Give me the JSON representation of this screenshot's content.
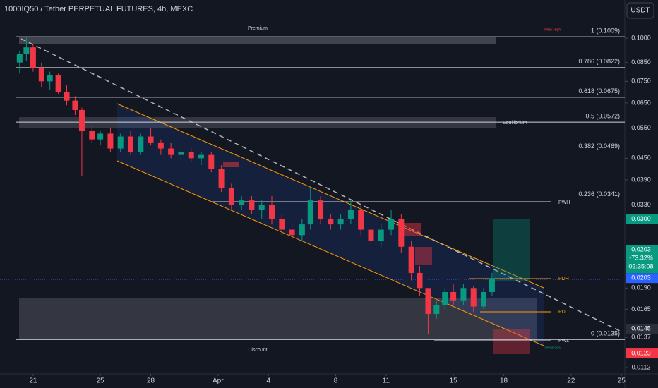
{
  "chart_data": {
    "type": "candlestick",
    "title": "1000IQ50 / Tether PERPETUAL FUTURES, 4h, MEXC",
    "currency_button": "USDT",
    "log_scale": true,
    "colors": {
      "up": "#089981",
      "down": "#f23645"
    },
    "x": [
      20.2,
      20.6,
      21.0,
      21.5,
      22.0,
      22.5,
      23.0,
      23.5,
      23.9,
      24.5,
      25.0,
      25.6,
      26.2,
      26.8,
      27.4,
      28.0,
      28.6,
      29.2,
      29.8,
      30.4,
      31.0,
      31.6,
      32.2,
      32.8,
      33.4,
      34.0,
      34.6,
      35.2,
      35.8,
      36.4,
      37.0,
      37.5,
      38.1,
      38.7,
      39.3,
      39.9,
      40.5,
      41.1,
      41.7,
      42.3,
      42.9,
      43.5,
      44.0,
      44.5,
      45.0,
      45.5,
      46.0,
      46.6,
      47.2,
      47.8,
      48.3
    ],
    "open": [
      0.085,
      0.09,
      0.094,
      0.082,
      0.075,
      0.078,
      0.07,
      0.066,
      0.062,
      0.054,
      0.051,
      0.053,
      0.048,
      0.052,
      0.047,
      0.052,
      0.05,
      0.048,
      0.046,
      0.047,
      0.045,
      0.046,
      0.042,
      0.037,
      0.033,
      0.034,
      0.032,
      0.033,
      0.03,
      0.028,
      0.027,
      0.029,
      0.034,
      0.03,
      0.029,
      0.03,
      0.032,
      0.028,
      0.026,
      0.028,
      0.03,
      0.025,
      0.021,
      0.019,
      0.016,
      0.017,
      0.0185,
      0.0175,
      0.019,
      0.0168,
      0.0185
    ],
    "high": [
      0.092,
      0.101,
      0.096,
      0.085,
      0.08,
      0.079,
      0.073,
      0.068,
      0.063,
      0.056,
      0.054,
      0.055,
      0.053,
      0.054,
      0.053,
      0.055,
      0.051,
      0.05,
      0.048,
      0.048,
      0.047,
      0.047,
      0.043,
      0.038,
      0.035,
      0.035,
      0.034,
      0.035,
      0.031,
      0.029,
      0.03,
      0.037,
      0.035,
      0.031,
      0.031,
      0.034,
      0.033,
      0.029,
      0.029,
      0.032,
      0.031,
      0.026,
      0.022,
      0.019,
      0.0175,
      0.019,
      0.0195,
      0.0195,
      0.0192,
      0.019,
      0.021
    ],
    "low": [
      0.079,
      0.086,
      0.08,
      0.072,
      0.071,
      0.069,
      0.064,
      0.06,
      0.04,
      0.05,
      0.049,
      0.047,
      0.047,
      0.046,
      0.046,
      0.049,
      0.046,
      0.045,
      0.044,
      0.044,
      0.043,
      0.041,
      0.036,
      0.032,
      0.032,
      0.031,
      0.03,
      0.029,
      0.027,
      0.026,
      0.026,
      0.028,
      0.029,
      0.028,
      0.028,
      0.029,
      0.027,
      0.025,
      0.025,
      0.027,
      0.024,
      0.02,
      0.018,
      0.014,
      0.0155,
      0.0165,
      0.017,
      0.017,
      0.0162,
      0.0165,
      0.018
    ],
    "close": [
      0.09,
      0.094,
      0.082,
      0.075,
      0.078,
      0.07,
      0.066,
      0.062,
      0.054,
      0.051,
      0.053,
      0.048,
      0.052,
      0.047,
      0.052,
      0.05,
      0.048,
      0.046,
      0.047,
      0.045,
      0.046,
      0.042,
      0.037,
      0.033,
      0.034,
      0.032,
      0.033,
      0.03,
      0.028,
      0.027,
      0.029,
      0.034,
      0.03,
      0.029,
      0.03,
      0.032,
      0.028,
      0.026,
      0.028,
      0.03,
      0.025,
      0.021,
      0.019,
      0.016,
      0.017,
      0.0185,
      0.0175,
      0.019,
      0.0168,
      0.0185,
      0.0203
    ],
    "xlim": [
      19.03,
      56.2
    ],
    "xticks": [
      21,
      25,
      28,
      {
        "value": 32,
        "label": "Apr"
      },
      {
        "value": 35,
        "label": "4"
      },
      {
        "value": 39,
        "label": "8"
      },
      {
        "value": 42,
        "label": "11"
      },
      {
        "value": 46,
        "label": "15"
      },
      {
        "value": 49,
        "label": "18"
      },
      {
        "value": 53,
        "label": "22"
      },
      {
        "value": 56,
        "label": "25"
      }
    ],
    "ylim": [
      0.01074,
      0.1288
    ],
    "yticks": [
      {
        "value": 0.1,
        "label": "0.1000"
      },
      {
        "value": 0.085,
        "label": "0.0850"
      },
      {
        "value": 0.075,
        "label": "0.0750"
      },
      {
        "value": 0.065,
        "label": "0.0650"
      },
      {
        "value": 0.055,
        "label": "0.0550"
      },
      {
        "value": 0.045,
        "label": "0.0450"
      },
      {
        "value": 0.039,
        "label": "0.0390"
      },
      {
        "value": 0.033,
        "label": "0.0330"
      },
      {
        "value": 0.019,
        "label": "0.0190"
      },
      {
        "value": 0.0165,
        "label": "0.0165"
      },
      {
        "value": 0.0137,
        "label": "0.0137"
      },
      {
        "value": 0.0112,
        "label": "0.0112"
      }
    ],
    "fib_levels": [
      {
        "label": "1 (0.1009)",
        "value": 0.1009
      },
      {
        "label": "0.786 (0.0822)",
        "value": 0.0822
      },
      {
        "label": "0.618 (0.0675)",
        "value": 0.0675
      },
      {
        "label": "0.5 (0.0572)",
        "value": 0.0572
      },
      {
        "label": "0.382 (0.0469)",
        "value": 0.0469
      },
      {
        "label": "0.236 (0.0341)",
        "value": 0.0341
      },
      {
        "label": "0 (0.0135)",
        "value": 0.0135
      }
    ],
    "annotations": {
      "premium": "Premium",
      "weak_high": "Weak High",
      "equilibrium": "Equilibrium",
      "discount": "Discount",
      "weak_low": "Weak Low",
      "pwh": "PWH",
      "pdh": "PDH",
      "pdl": "PDL",
      "pwl": "PWL"
    },
    "price_badges": [
      {
        "label": "0.0300",
        "value": 0.03,
        "color": "#089981"
      },
      {
        "label": "0.0203",
        "value": 0.0203,
        "color": "#2962ff"
      },
      {
        "label": "0.0145",
        "value": 0.0145,
        "color": "#2a2e39"
      },
      {
        "label": "0.0123",
        "value": 0.0123,
        "color": "#f23645"
      }
    ],
    "last_price": {
      "price": {
        "value": 0.0203,
        "label": "0.0203"
      },
      "change": "-73.32%",
      "countdown": "02:35:08",
      "color": "#089981"
    }
  }
}
